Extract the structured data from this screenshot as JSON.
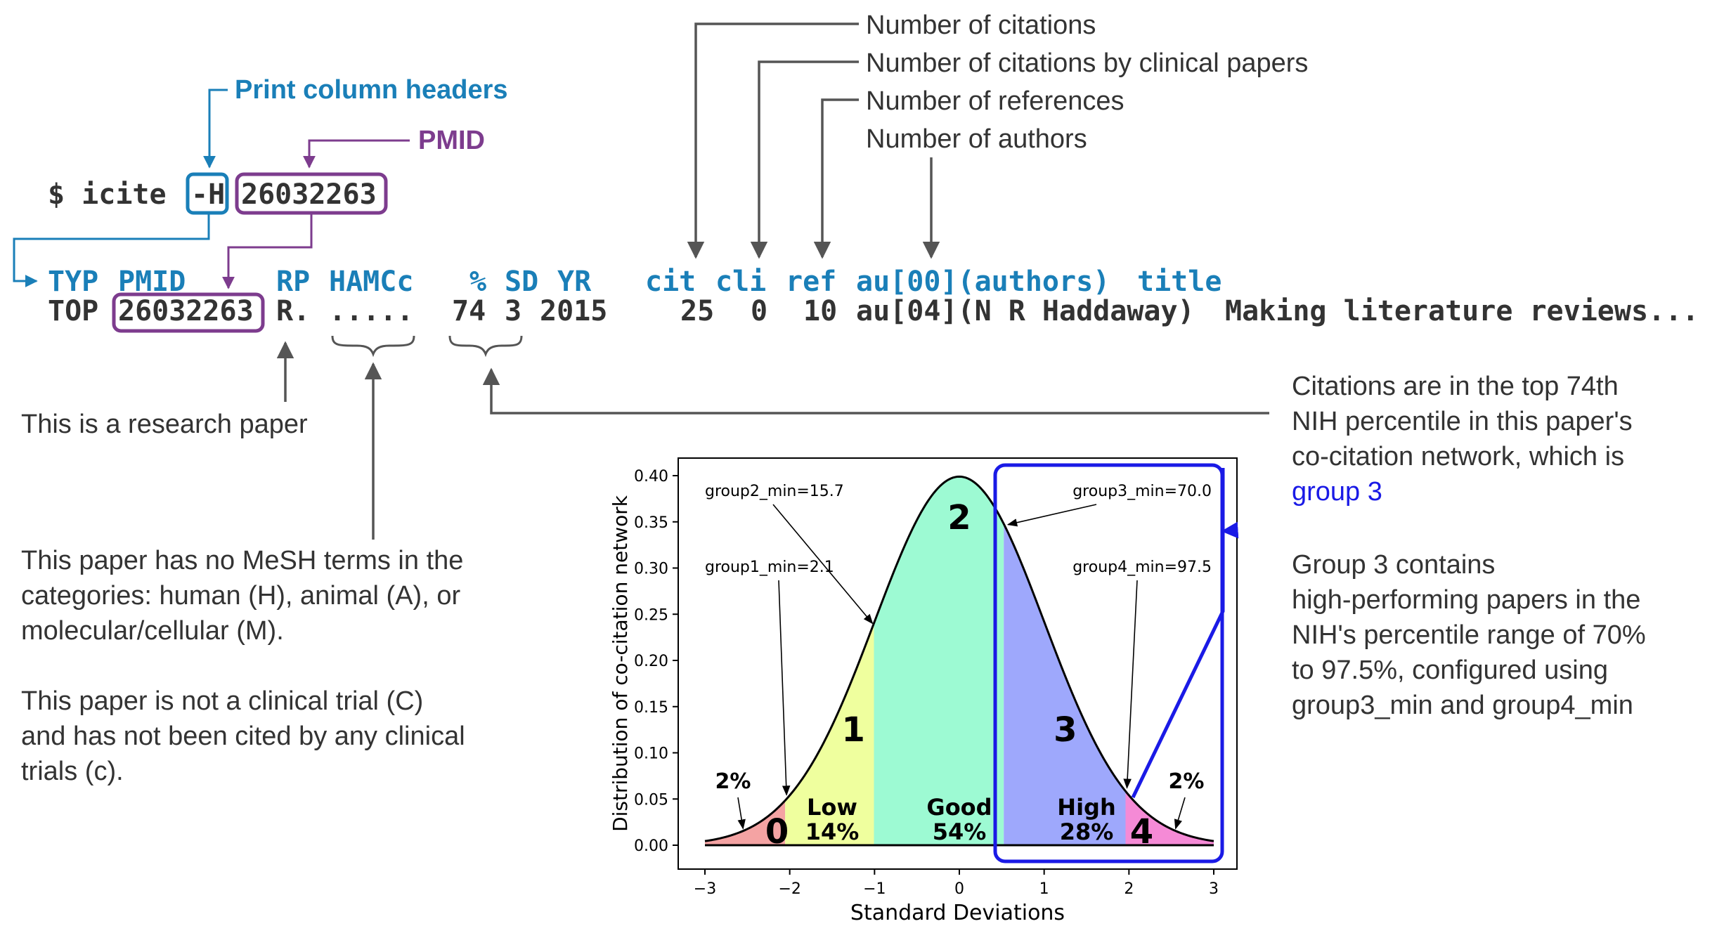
{
  "command": {
    "prompt": "$ icite",
    "flag": "-H",
    "pmid": "26032263"
  },
  "output": {
    "header_cells": [
      "TYP",
      "PMID",
      "RP",
      "HAMCc",
      "%",
      "SD",
      "YR",
      "cit",
      "cli",
      "ref",
      "au[00](authors)",
      "title"
    ],
    "row_cells": [
      "TOP",
      "26032263",
      "R.",
      ".....",
      "74",
      "3",
      "2015",
      "25",
      "0",
      "10",
      "au[04](N R Haddaway)",
      "Making literature reviews..."
    ]
  },
  "annotations": {
    "print_headers": "Print column headers",
    "pmid": "PMID",
    "num_citations": "Number of citations",
    "num_citations_clinical": "Number of citations by clinical papers",
    "num_references": "Number of references",
    "num_authors": "Number of authors",
    "research_paper": "This is a research paper",
    "mesh_lines": [
      "This paper has no MeSH terms in the",
      "categories: human (H), animal (A), or",
      "molecular/cellular (M)."
    ],
    "clinical_lines": [
      "This paper is not a clinical trial (C)",
      "and has not been cited by any clinical",
      "trials (c)."
    ],
    "percentile_lines": [
      "Citations are in the top 74th",
      "NIH percentile in this paper's",
      "co-citation network, which is"
    ],
    "percentile_group": "group 3",
    "group3_lines": [
      "Group 3 contains",
      "high-performing papers in the",
      "NIH's percentile range of 70%",
      "to 97.5%, configured using",
      "group3_min and group4_min"
    ]
  },
  "colors": {
    "dark_text": "#333333",
    "header_blue": "#1a7fb8",
    "pmid_purple": "#7d3c8e",
    "arrow_gray": "#555555",
    "highlight_blue": "#1a1ae6",
    "group0": "#f4a3a3",
    "group1": "#efff9e",
    "group2": "#9dfad3",
    "group3": "#9ea8fc",
    "group4": "#f58ad6"
  },
  "chart_data": {
    "type": "area",
    "xlabel": "Standard Deviations",
    "ylabel": "Distribution of co-citation network",
    "xlim": [
      -3,
      3
    ],
    "ylim": [
      0,
      0.4
    ],
    "x_ticks": [
      "−3",
      "−2",
      "−1",
      "0",
      "1",
      "2",
      "3"
    ],
    "y_ticks": [
      "0.00",
      "0.05",
      "0.10",
      "0.15",
      "0.20",
      "0.25",
      "0.30",
      "0.35",
      "0.40"
    ],
    "curve": "standard normal pdf",
    "regions": [
      {
        "group": "0",
        "from": -3,
        "to": -2.054,
        "color": "#f4a3a3",
        "label": "",
        "percent": "",
        "group_label_x": -2.15
      },
      {
        "group": "1",
        "from": -2.054,
        "to": -1.007,
        "color": "#efff9e",
        "label": "Low",
        "percent": "14%",
        "group_label_x": -1.25,
        "band_label_x": -1.5
      },
      {
        "group": "2",
        "from": -1.007,
        "to": 0.524,
        "color": "#9dfad3",
        "label": "Good",
        "percent": "54%",
        "group_label_x": 0.0,
        "band_label_x": 0.0
      },
      {
        "group": "3",
        "from": 0.524,
        "to": 1.96,
        "color": "#9ea8fc",
        "label": "High",
        "percent": "28%",
        "group_label_x": 1.25,
        "band_label_x": 1.5
      },
      {
        "group": "4",
        "from": 1.96,
        "to": 3,
        "color": "#f58ad6",
        "label": "",
        "percent": "",
        "group_label_x": 2.15
      }
    ],
    "annotations": [
      {
        "text": "group2_min=15.7",
        "x": -1.007,
        "y": 0.24
      },
      {
        "text": "group1_min=2.1",
        "x": -2.054,
        "y": 0.05
      },
      {
        "text": "group3_min=70.0",
        "x": 0.524,
        "y": 0.347
      },
      {
        "text": "group4_min=97.5",
        "x": 1.96,
        "y": 0.059
      },
      {
        "text": "2%",
        "x": -2.55,
        "y": 0.018
      },
      {
        "text": "2%",
        "x": 2.55,
        "y": 0.018
      }
    ],
    "grid": false,
    "legend": "none"
  }
}
